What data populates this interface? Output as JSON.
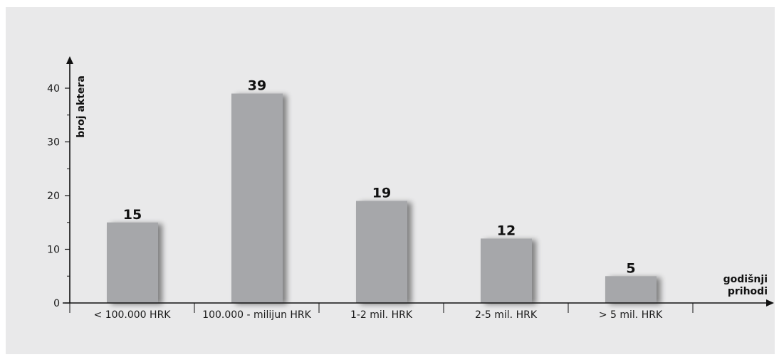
{
  "chart_data": {
    "type": "bar",
    "categories": [
      "< 100.000 HRK",
      "100.000 - milijun HRK",
      "1-2 mil. HRK",
      "2-5 mil. HRK",
      "> 5 mil. HRK"
    ],
    "values": [
      15,
      39,
      19,
      12,
      5
    ],
    "ylabel": "broj aktera",
    "xlabel_lines": [
      "godišnji",
      "prihodi"
    ],
    "ylim": [
      0,
      45
    ],
    "yticks": [
      0,
      10,
      20,
      30,
      40
    ],
    "grid": false,
    "colors": {
      "bar": "#a6a7aa",
      "background": "#e9e9ea",
      "axis": "#111111"
    }
  }
}
